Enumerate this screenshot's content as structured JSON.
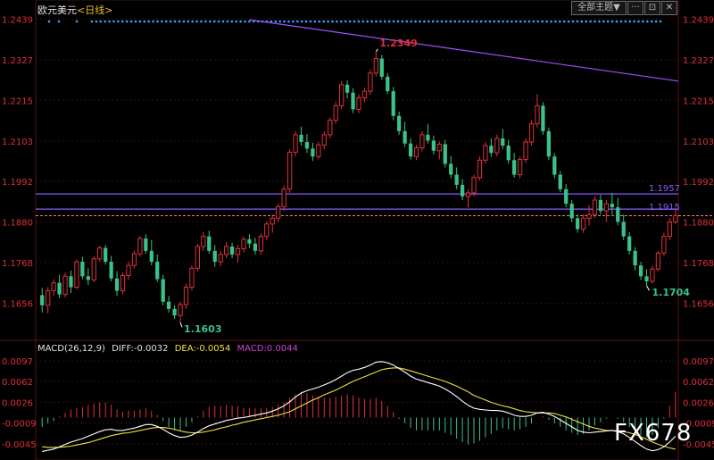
{
  "header": {
    "symbol": "欧元美元",
    "timeframe": "<日线>",
    "controls": {
      "all_main_label": "全部主题▼",
      "btn_more": "···",
      "btn_link": "⊡",
      "btn_close": "✕"
    }
  },
  "colors": {
    "background": "#000000",
    "up": "#e0303a",
    "down": "#3ac28a",
    "grid": "#3a0f0f",
    "axis_text": "#e0303a",
    "trendline": "#a04fff",
    "hline": "#8a5cff",
    "price_line": "#ff7a7a",
    "diff_line": "#ffffff",
    "dea_line": "#f0e040",
    "macd_label": "#d040d0",
    "dots": "#35a8ff"
  },
  "chart_data": [
    {
      "type": "candlestick",
      "title": "欧元美元<日线>",
      "y_axis_ticks": [
        "1.2439",
        "1.2327",
        "1.2215",
        "1.2103",
        "1.1992",
        "1.1880",
        "1.1768",
        "1.1656"
      ],
      "ylim": [
        1.1556,
        1.2452
      ],
      "annotations": {
        "high_label": "1.2349",
        "low_label": "1.1603",
        "recent_low_label": "1.1704",
        "hline_upper_label": "1.1957",
        "hline_lower_label": "1.1915"
      },
      "horizontal_lines": [
        1.1957,
        1.1915
      ],
      "current_price": 1.1897,
      "trendline": {
        "from": {
          "bar": 0,
          "price": 1.2437
        },
        "to": {
          "bar": 150,
          "price": 1.2152
        },
        "from_bar_offset": 36
      },
      "ohlc": [
        [
          1.1678,
          1.1698,
          1.163,
          1.165
        ],
        [
          1.165,
          1.17,
          1.1628,
          1.169
        ],
        [
          1.169,
          1.1722,
          1.1676,
          1.1712
        ],
        [
          1.1712,
          1.1734,
          1.167,
          1.168
        ],
        [
          1.168,
          1.174,
          1.1672,
          1.173
        ],
        [
          1.173,
          1.1746,
          1.1684,
          1.17
        ],
        [
          1.17,
          1.1776,
          1.1694,
          1.177
        ],
        [
          1.177,
          1.1784,
          1.1722,
          1.173
        ],
        [
          1.173,
          1.1752,
          1.1706,
          1.172
        ],
        [
          1.172,
          1.1786,
          1.1714,
          1.1778
        ],
        [
          1.1778,
          1.1814,
          1.177,
          1.1808
        ],
        [
          1.1808,
          1.1816,
          1.1762,
          1.177
        ],
        [
          1.177,
          1.1786,
          1.1716,
          1.1724
        ],
        [
          1.1724,
          1.1744,
          1.1676,
          1.169
        ],
        [
          1.169,
          1.174,
          1.168,
          1.1732
        ],
        [
          1.1732,
          1.177,
          1.172,
          1.176
        ],
        [
          1.176,
          1.18,
          1.1752,
          1.1792
        ],
        [
          1.1792,
          1.1842,
          1.1784,
          1.1834
        ],
        [
          1.1834,
          1.1846,
          1.1792,
          1.18
        ],
        [
          1.18,
          1.183,
          1.176,
          1.177
        ],
        [
          1.177,
          1.179,
          1.1714,
          1.1722
        ],
        [
          1.1722,
          1.1734,
          1.165,
          1.166
        ],
        [
          1.166,
          1.1676,
          1.163,
          1.164
        ],
        [
          1.164,
          1.165,
          1.1612,
          1.1622
        ],
        [
          1.1622,
          1.166,
          1.1603,
          1.1652
        ],
        [
          1.1652,
          1.171,
          1.164,
          1.17
        ],
        [
          1.17,
          1.176,
          1.169,
          1.1752
        ],
        [
          1.1752,
          1.182,
          1.1744,
          1.1812
        ],
        [
          1.1812,
          1.1852,
          1.18,
          1.184
        ],
        [
          1.184,
          1.1856,
          1.1792,
          1.18
        ],
        [
          1.18,
          1.1816,
          1.1756,
          1.177
        ],
        [
          1.177,
          1.18,
          1.1758,
          1.179
        ],
        [
          1.179,
          1.1824,
          1.178,
          1.1812
        ],
        [
          1.1812,
          1.1822,
          1.178,
          1.179
        ],
        [
          1.179,
          1.1816,
          1.1768,
          1.1806
        ],
        [
          1.1806,
          1.184,
          1.1796,
          1.1832
        ],
        [
          1.1832,
          1.1846,
          1.1808,
          1.182
        ],
        [
          1.182,
          1.1836,
          1.179,
          1.18
        ],
        [
          1.18,
          1.1848,
          1.179,
          1.184
        ],
        [
          1.184,
          1.1882,
          1.183,
          1.1874
        ],
        [
          1.1874,
          1.19,
          1.185,
          1.189
        ],
        [
          1.189,
          1.193,
          1.188,
          1.1922
        ],
        [
          1.1922,
          1.198,
          1.191,
          1.197
        ],
        [
          1.197,
          1.208,
          1.196,
          1.2072
        ],
        [
          1.2072,
          1.213,
          1.206,
          1.212
        ],
        [
          1.212,
          1.2142,
          1.209,
          1.21
        ],
        [
          1.21,
          1.2122,
          1.207,
          1.2082
        ],
        [
          1.2082,
          1.2098,
          1.2048,
          1.206
        ],
        [
          1.206,
          1.21,
          1.2052,
          1.2092
        ],
        [
          1.2092,
          1.213,
          1.208,
          1.212
        ],
        [
          1.212,
          1.2168,
          1.211,
          1.216
        ],
        [
          1.216,
          1.221,
          1.215,
          1.22
        ],
        [
          1.22,
          1.2268,
          1.219,
          1.2258
        ],
        [
          1.2258,
          1.227,
          1.222,
          1.2236
        ],
        [
          1.2236,
          1.2248,
          1.218,
          1.219
        ],
        [
          1.219,
          1.2232,
          1.218,
          1.2222
        ],
        [
          1.2222,
          1.225,
          1.221,
          1.224
        ],
        [
          1.224,
          1.23,
          1.223,
          1.229
        ],
        [
          1.229,
          1.2349,
          1.228,
          1.233
        ],
        [
          1.233,
          1.234,
          1.2272,
          1.228
        ],
        [
          1.228,
          1.229,
          1.2232,
          1.224
        ],
        [
          1.224,
          1.2252,
          1.216,
          1.2172
        ],
        [
          1.2172,
          1.2184,
          1.212,
          1.213
        ],
        [
          1.213,
          1.2156,
          1.2086,
          1.2096
        ],
        [
          1.2096,
          1.211,
          1.2052,
          1.206
        ],
        [
          1.206,
          1.2092,
          1.205,
          1.2084
        ],
        [
          1.2084,
          1.213,
          1.2074,
          1.212
        ],
        [
          1.212,
          1.215,
          1.2096,
          1.2104
        ],
        [
          1.2104,
          1.2118,
          1.2066,
          1.2076
        ],
        [
          1.2076,
          1.2102,
          1.2052,
          1.2094
        ],
        [
          1.2094,
          1.2106,
          1.203,
          1.204
        ],
        [
          1.204,
          1.2062,
          1.2,
          1.201
        ],
        [
          1.201,
          1.203,
          1.197,
          1.1982
        ],
        [
          1.1982,
          1.1998,
          1.194,
          1.195
        ],
        [
          1.195,
          1.197,
          1.192,
          1.196
        ],
        [
          1.196,
          1.201,
          1.195,
          1.2002
        ],
        [
          1.2002,
          1.206,
          1.1994,
          1.205
        ],
        [
          1.205,
          1.21,
          1.204,
          1.209
        ],
        [
          1.209,
          1.211,
          1.206,
          1.207
        ],
        [
          1.207,
          1.212,
          1.206,
          1.211
        ],
        [
          1.211,
          1.2136,
          1.208,
          1.209
        ],
        [
          1.209,
          1.2106,
          1.204,
          1.205
        ],
        [
          1.205,
          1.207,
          1.2002,
          1.201
        ],
        [
          1.201,
          1.206,
          1.2,
          1.2052
        ],
        [
          1.2052,
          1.211,
          1.2042,
          1.21
        ],
        [
          1.21,
          1.216,
          1.209,
          1.215
        ],
        [
          1.215,
          1.2232,
          1.214,
          1.22
        ],
        [
          1.22,
          1.221,
          1.212,
          1.213
        ],
        [
          1.213,
          1.214,
          1.205,
          1.206
        ],
        [
          1.206,
          1.207,
          1.2,
          1.201
        ],
        [
          1.201,
          1.202,
          1.1962,
          1.197
        ],
        [
          1.197,
          1.1984,
          1.192,
          1.193
        ],
        [
          1.193,
          1.194,
          1.188,
          1.189
        ],
        [
          1.189,
          1.19,
          1.185,
          1.186
        ],
        [
          1.186,
          1.19,
          1.185,
          1.189
        ],
        [
          1.189,
          1.1926,
          1.187,
          1.19
        ],
        [
          1.19,
          1.195,
          1.189,
          1.194
        ],
        [
          1.194,
          1.1954,
          1.19,
          1.191
        ],
        [
          1.191,
          1.194,
          1.188,
          1.193
        ],
        [
          1.193,
          1.196,
          1.19,
          1.192
        ],
        [
          1.192,
          1.1946,
          1.187,
          1.188
        ],
        [
          1.188,
          1.19,
          1.183,
          1.184
        ],
        [
          1.184,
          1.1852,
          1.179,
          1.18
        ],
        [
          1.18,
          1.181,
          1.1746,
          1.176
        ],
        [
          1.176,
          1.177,
          1.172,
          1.173
        ],
        [
          1.173,
          1.175,
          1.1704,
          1.1716
        ],
        [
          1.1716,
          1.176,
          1.171,
          1.175
        ],
        [
          1.175,
          1.18,
          1.1744,
          1.1794
        ],
        [
          1.1794,
          1.185,
          1.1786,
          1.184
        ],
        [
          1.184,
          1.189,
          1.183,
          1.188
        ],
        [
          1.188,
          1.192,
          1.1874,
          1.1897
        ]
      ]
    },
    {
      "type": "macd",
      "legend": {
        "name": "MACD(26,12,9)",
        "diff": "DIFF:-0.0032",
        "dea": "DEA:-0.0054",
        "macd": "MACD:0.0044"
      },
      "y_axis_ticks": [
        "0.0097",
        "0.0062",
        "0.0026",
        "-0.0009",
        "-0.0045"
      ],
      "ylim": [
        -0.0062,
        0.0114
      ],
      "diff": [
        -0.0058,
        -0.0056,
        -0.0054,
        -0.005,
        -0.0046,
        -0.0042,
        -0.0039,
        -0.0036,
        -0.0032,
        -0.0028,
        -0.0024,
        -0.0021,
        -0.002,
        -0.0022,
        -0.0022,
        -0.002,
        -0.0018,
        -0.0015,
        -0.0012,
        -0.0012,
        -0.0015,
        -0.002,
        -0.0026,
        -0.0031,
        -0.0034,
        -0.0033,
        -0.003,
        -0.0025,
        -0.0019,
        -0.0014,
        -0.0011,
        -0.0008,
        -0.0005,
        -0.0003,
        -0.0001,
        0.0,
        0.0002,
        0.0004,
        0.0006,
        0.0008,
        0.0011,
        0.0015,
        0.002,
        0.0027,
        0.0035,
        0.0042,
        0.0046,
        0.0049,
        0.0052,
        0.0056,
        0.006,
        0.0065,
        0.0071,
        0.0077,
        0.0081,
        0.0083,
        0.0086,
        0.009,
        0.0095,
        0.0096,
        0.0094,
        0.009,
        0.0084,
        0.0078,
        0.0071,
        0.0066,
        0.0063,
        0.006,
        0.0057,
        0.0054,
        0.0049,
        0.0043,
        0.0036,
        0.0028,
        0.0021,
        0.0016,
        0.0014,
        0.0013,
        0.0012,
        0.0012,
        0.0011,
        0.0008,
        0.0004,
        0.0002,
        0.0002,
        0.0004,
        0.0008,
        0.0009,
        0.0006,
        0.0002,
        -0.0004,
        -0.001,
        -0.0016,
        -0.0022,
        -0.0025,
        -0.0026,
        -0.0025,
        -0.0024,
        -0.0023,
        -0.0022,
        -0.0024,
        -0.0028,
        -0.0034,
        -0.0041,
        -0.0048,
        -0.0054,
        -0.0057,
        -0.0055,
        -0.005,
        -0.0042,
        -0.0032
      ],
      "dea": [
        -0.005,
        -0.0051,
        -0.0051,
        -0.0051,
        -0.005,
        -0.0049,
        -0.0047,
        -0.0045,
        -0.0043,
        -0.004,
        -0.0037,
        -0.0034,
        -0.0031,
        -0.0029,
        -0.0027,
        -0.0026,
        -0.0024,
        -0.0022,
        -0.002,
        -0.0018,
        -0.0017,
        -0.0017,
        -0.0018,
        -0.002,
        -0.0023,
        -0.0025,
        -0.0026,
        -0.0026,
        -0.0025,
        -0.0023,
        -0.0021,
        -0.0018,
        -0.0016,
        -0.0013,
        -0.0011,
        -0.0008,
        -0.0006,
        -0.0004,
        -0.0002,
        0.0,
        0.0002,
        0.0004,
        0.0007,
        0.001,
        0.0015,
        0.002,
        0.0025,
        0.003,
        0.0034,
        0.0039,
        0.0043,
        0.0047,
        0.0052,
        0.0057,
        0.0062,
        0.0066,
        0.007,
        0.0074,
        0.0078,
        0.0082,
        0.0084,
        0.0085,
        0.0085,
        0.0083,
        0.008,
        0.0077,
        0.0074,
        0.0071,
        0.0068,
        0.0065,
        0.0062,
        0.0058,
        0.0054,
        0.0049,
        0.0044,
        0.0038,
        0.0034,
        0.003,
        0.0026,
        0.0023,
        0.002,
        0.0018,
        0.0015,
        0.0012,
        0.001,
        0.0009,
        0.0008,
        0.0008,
        0.0008,
        0.0007,
        0.0004,
        0.0001,
        -0.0003,
        -0.0007,
        -0.0011,
        -0.0015,
        -0.0018,
        -0.002,
        -0.0022,
        -0.0022,
        -0.0023,
        -0.0024,
        -0.0026,
        -0.0029,
        -0.0033,
        -0.0037,
        -0.0042,
        -0.0046,
        -0.0049,
        -0.0052,
        -0.0054
      ]
    }
  ],
  "watermark": "FX678"
}
